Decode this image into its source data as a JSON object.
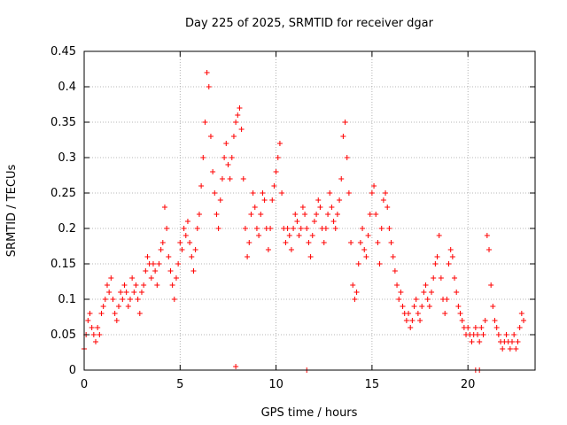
{
  "chart_data": {
    "type": "scatter",
    "title": "Day 225 of 2025, SRMTID for receiver dgar",
    "xlabel": "GPS time / hours",
    "ylabel": "SRMTID / TECUs",
    "xlim": [
      0,
      23.5
    ],
    "ylim": [
      0,
      0.45
    ],
    "xticks": [
      0,
      5,
      10,
      15,
      20
    ],
    "xtick_labels": [
      "0",
      "5",
      "10",
      "15",
      "20"
    ],
    "yticks": [
      0,
      0.05,
      0.1,
      0.15,
      0.2,
      0.25,
      0.3,
      0.35,
      0.4,
      0.45
    ],
    "ytick_labels": [
      "0",
      "0.05",
      "0.1",
      "0.15",
      "0.2",
      "0.25",
      "0.3",
      "0.35",
      "0.4",
      "0.45"
    ],
    "grid": true,
    "marker": "+",
    "color": "#ff0000",
    "series": [
      {
        "name": "SRMTID",
        "points": [
          [
            0.0,
            0.03
          ],
          [
            0.1,
            0.05
          ],
          [
            0.2,
            0.07
          ],
          [
            0.3,
            0.08
          ],
          [
            0.4,
            0.06
          ],
          [
            0.5,
            0.05
          ],
          [
            0.6,
            0.04
          ],
          [
            0.7,
            0.06
          ],
          [
            0.8,
            0.05
          ],
          [
            0.9,
            0.08
          ],
          [
            1.0,
            0.09
          ],
          [
            1.1,
            0.1
          ],
          [
            1.2,
            0.12
          ],
          [
            1.3,
            0.11
          ],
          [
            1.4,
            0.13
          ],
          [
            1.5,
            0.1
          ],
          [
            1.6,
            0.08
          ],
          [
            1.7,
            0.07
          ],
          [
            1.8,
            0.09
          ],
          [
            1.9,
            0.11
          ],
          [
            2.0,
            0.1
          ],
          [
            2.1,
            0.12
          ],
          [
            2.2,
            0.11
          ],
          [
            2.3,
            0.09
          ],
          [
            2.4,
            0.1
          ],
          [
            2.5,
            0.13
          ],
          [
            2.6,
            0.11
          ],
          [
            2.7,
            0.12
          ],
          [
            2.8,
            0.1
          ],
          [
            2.9,
            0.08
          ],
          [
            3.0,
            0.11
          ],
          [
            3.1,
            0.12
          ],
          [
            3.2,
            0.14
          ],
          [
            3.3,
            0.16
          ],
          [
            3.4,
            0.15
          ],
          [
            3.5,
            0.13
          ],
          [
            3.6,
            0.15
          ],
          [
            3.7,
            0.14
          ],
          [
            3.8,
            0.12
          ],
          [
            3.9,
            0.15
          ],
          [
            4.0,
            0.17
          ],
          [
            4.1,
            0.18
          ],
          [
            4.2,
            0.23
          ],
          [
            4.3,
            0.2
          ],
          [
            4.4,
            0.16
          ],
          [
            4.5,
            0.14
          ],
          [
            4.6,
            0.12
          ],
          [
            4.7,
            0.1
          ],
          [
            4.8,
            0.13
          ],
          [
            4.9,
            0.15
          ],
          [
            5.0,
            0.18
          ],
          [
            5.1,
            0.17
          ],
          [
            5.2,
            0.2
          ],
          [
            5.3,
            0.19
          ],
          [
            5.4,
            0.21
          ],
          [
            5.5,
            0.18
          ],
          [
            5.6,
            0.16
          ],
          [
            5.7,
            0.14
          ],
          [
            5.8,
            0.17
          ],
          [
            5.9,
            0.2
          ],
          [
            6.0,
            0.22
          ],
          [
            6.1,
            0.26
          ],
          [
            6.2,
            0.3
          ],
          [
            6.3,
            0.35
          ],
          [
            6.4,
            0.42
          ],
          [
            6.5,
            0.4
          ],
          [
            6.6,
            0.33
          ],
          [
            6.7,
            0.28
          ],
          [
            6.8,
            0.25
          ],
          [
            6.9,
            0.22
          ],
          [
            7.0,
            0.2
          ],
          [
            7.1,
            0.24
          ],
          [
            7.2,
            0.27
          ],
          [
            7.3,
            0.3
          ],
          [
            7.4,
            0.32
          ],
          [
            7.5,
            0.29
          ],
          [
            7.6,
            0.27
          ],
          [
            7.7,
            0.3
          ],
          [
            7.8,
            0.33
          ],
          [
            7.9,
            0.35
          ],
          [
            8.0,
            0.36
          ],
          [
            8.1,
            0.37
          ],
          [
            8.2,
            0.34
          ],
          [
            8.3,
            0.27
          ],
          [
            8.4,
            0.2
          ],
          [
            8.5,
            0.16
          ],
          [
            8.6,
            0.18
          ],
          [
            8.7,
            0.22
          ],
          [
            8.8,
            0.25
          ],
          [
            8.9,
            0.23
          ],
          [
            9.0,
            0.2
          ],
          [
            9.1,
            0.19
          ],
          [
            9.2,
            0.22
          ],
          [
            9.3,
            0.25
          ],
          [
            9.4,
            0.24
          ],
          [
            9.5,
            0.2
          ],
          [
            9.6,
            0.17
          ],
          [
            9.7,
            0.2
          ],
          [
            9.8,
            0.24
          ],
          [
            9.9,
            0.26
          ],
          [
            10.0,
            0.28
          ],
          [
            10.1,
            0.3
          ],
          [
            10.2,
            0.32
          ],
          [
            10.3,
            0.25
          ],
          [
            10.4,
            0.2
          ],
          [
            10.5,
            0.18
          ],
          [
            10.6,
            0.2
          ],
          [
            10.7,
            0.19
          ],
          [
            10.8,
            0.17
          ],
          [
            10.9,
            0.2
          ],
          [
            11.0,
            0.22
          ],
          [
            11.1,
            0.21
          ],
          [
            11.2,
            0.19
          ],
          [
            11.3,
            0.2
          ],
          [
            11.4,
            0.23
          ],
          [
            11.5,
            0.22
          ],
          [
            11.6,
            0.2
          ],
          [
            11.7,
            0.18
          ],
          [
            11.8,
            0.16
          ],
          [
            11.9,
            0.19
          ],
          [
            12.0,
            0.21
          ],
          [
            12.1,
            0.22
          ],
          [
            12.2,
            0.24
          ],
          [
            12.3,
            0.23
          ],
          [
            12.4,
            0.2
          ],
          [
            12.5,
            0.18
          ],
          [
            12.6,
            0.2
          ],
          [
            12.7,
            0.22
          ],
          [
            12.8,
            0.25
          ],
          [
            12.9,
            0.23
          ],
          [
            13.0,
            0.21
          ],
          [
            13.1,
            0.2
          ],
          [
            13.2,
            0.22
          ],
          [
            13.3,
            0.24
          ],
          [
            13.4,
            0.27
          ],
          [
            13.5,
            0.33
          ],
          [
            13.6,
            0.35
          ],
          [
            13.7,
            0.3
          ],
          [
            13.8,
            0.25
          ],
          [
            13.9,
            0.18
          ],
          [
            14.0,
            0.12
          ],
          [
            14.1,
            0.1
          ],
          [
            14.2,
            0.11
          ],
          [
            14.3,
            0.15
          ],
          [
            14.4,
            0.18
          ],
          [
            14.5,
            0.2
          ],
          [
            14.6,
            0.17
          ],
          [
            14.7,
            0.16
          ],
          [
            14.8,
            0.19
          ],
          [
            14.9,
            0.22
          ],
          [
            15.0,
            0.25
          ],
          [
            15.1,
            0.26
          ],
          [
            15.2,
            0.22
          ],
          [
            15.3,
            0.18
          ],
          [
            15.4,
            0.15
          ],
          [
            15.5,
            0.2
          ],
          [
            15.6,
            0.24
          ],
          [
            15.7,
            0.25
          ],
          [
            15.8,
            0.23
          ],
          [
            15.9,
            0.2
          ],
          [
            16.0,
            0.18
          ],
          [
            16.1,
            0.16
          ],
          [
            16.2,
            0.14
          ],
          [
            16.3,
            0.12
          ],
          [
            16.4,
            0.1
          ],
          [
            16.5,
            0.11
          ],
          [
            16.6,
            0.09
          ],
          [
            16.7,
            0.08
          ],
          [
            16.8,
            0.07
          ],
          [
            16.9,
            0.08
          ],
          [
            17.0,
            0.06
          ],
          [
            17.1,
            0.07
          ],
          [
            17.2,
            0.09
          ],
          [
            17.3,
            0.1
          ],
          [
            17.4,
            0.08
          ],
          [
            17.5,
            0.07
          ],
          [
            17.6,
            0.09
          ],
          [
            17.7,
            0.11
          ],
          [
            17.8,
            0.12
          ],
          [
            17.9,
            0.1
          ],
          [
            18.0,
            0.09
          ],
          [
            18.1,
            0.11
          ],
          [
            18.2,
            0.13
          ],
          [
            18.3,
            0.15
          ],
          [
            18.4,
            0.16
          ],
          [
            18.5,
            0.19
          ],
          [
            18.6,
            0.13
          ],
          [
            18.7,
            0.1
          ],
          [
            18.8,
            0.08
          ],
          [
            18.9,
            0.1
          ],
          [
            19.0,
            0.15
          ],
          [
            19.1,
            0.17
          ],
          [
            19.2,
            0.16
          ],
          [
            19.3,
            0.13
          ],
          [
            19.4,
            0.11
          ],
          [
            19.5,
            0.09
          ],
          [
            19.6,
            0.08
          ],
          [
            19.7,
            0.07
          ],
          [
            19.8,
            0.06
          ],
          [
            19.9,
            0.05
          ],
          [
            20.0,
            0.06
          ],
          [
            20.1,
            0.05
          ],
          [
            20.2,
            0.04
          ],
          [
            20.3,
            0.05
          ],
          [
            20.4,
            0.06
          ],
          [
            20.5,
            0.05
          ],
          [
            20.6,
            0.04
          ],
          [
            20.7,
            0.06
          ],
          [
            20.8,
            0.05
          ],
          [
            20.9,
            0.07
          ],
          [
            21.0,
            0.19
          ],
          [
            21.1,
            0.17
          ],
          [
            21.2,
            0.12
          ],
          [
            21.3,
            0.09
          ],
          [
            21.4,
            0.07
          ],
          [
            21.5,
            0.06
          ],
          [
            21.6,
            0.05
          ],
          [
            21.7,
            0.04
          ],
          [
            21.8,
            0.03
          ],
          [
            21.9,
            0.04
          ],
          [
            22.0,
            0.05
          ],
          [
            22.1,
            0.04
          ],
          [
            22.2,
            0.03
          ],
          [
            22.3,
            0.04
          ],
          [
            22.4,
            0.05
          ],
          [
            22.5,
            0.03
          ],
          [
            22.6,
            0.04
          ],
          [
            22.7,
            0.06
          ],
          [
            22.8,
            0.08
          ],
          [
            22.9,
            0.07
          ],
          [
            7.9,
            0.005
          ],
          [
            11.6,
            0.0
          ],
          [
            20.4,
            0.0
          ],
          [
            20.6,
            0.0
          ]
        ]
      }
    ]
  }
}
